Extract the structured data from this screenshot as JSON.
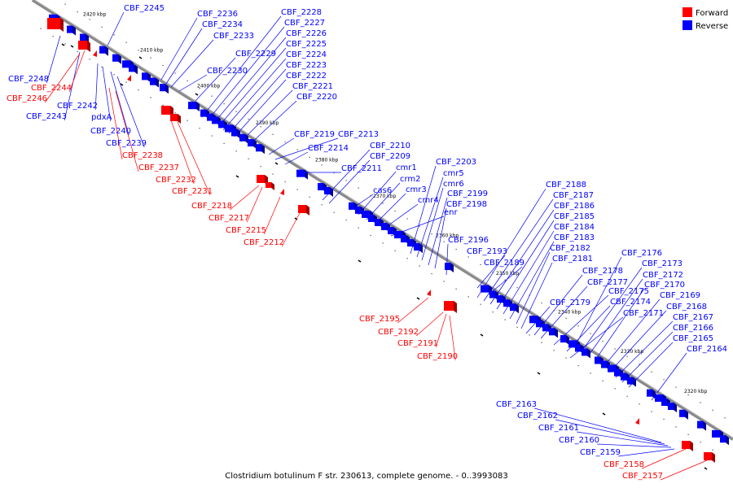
{
  "caption": "Clostridium botulinum F str. 230613, complete genome. - 0..3993083",
  "legend": {
    "forward_label": "Forward",
    "reverse_label": "Reverse",
    "forward_color": "#ff0000",
    "reverse_color": "#0000ff"
  },
  "colors": {
    "backbone": "#8a8a8a",
    "forward": "#ff0000",
    "reverse": "#0000ff",
    "tick": "#000000"
  },
  "kbp_ticks": [
    "2420 kbp",
    "2410 kbp",
    "2400 kbp",
    "2390 kbp",
    "2380 kbp",
    "2370 kbp",
    "2360 kbp",
    "2350 kbp",
    "2340 kbp",
    "2330 kbp",
    "2320 kbp"
  ],
  "reverse_labels": [
    "CBF_2245",
    "CBF_2236",
    "CBF_2234",
    "CBF_2233",
    "CBF_2228",
    "CBF_2227",
    "CBF_2226",
    "CBF_2225",
    "CBF_2224",
    "CBF_2229",
    "CBF_2223",
    "CBF_2230",
    "CBF_2222",
    "CBF_2221",
    "CBF_2220",
    "CBF_2248",
    "CBF_2242",
    "CBF_2243",
    "pdxA",
    "CBF_2240",
    "CBF_2239",
    "CBF_2219",
    "CBF_2213",
    "CBF_2214",
    "CBF_2210",
    "CBF_2209",
    "CBF_2211",
    "CBF_2203",
    "cmr1",
    "cmr5",
    "crm2",
    "cmr6",
    "cas6",
    "cmr3",
    "CBF_2199",
    "cmr4",
    "CBF_2198",
    "enr",
    "CBF_2196",
    "CBF_2193",
    "CBF_2189",
    "CBF_2188",
    "CBF_2187",
    "CBF_2186",
    "CBF_2185",
    "CBF_2184",
    "CBF_2183",
    "CBF_2182",
    "CBF_2181",
    "CBF_2176",
    "CBF_2173",
    "CBF_2178",
    "CBF_2172",
    "CBF_2177",
    "CBF_2175",
    "CBF_2170",
    "CBF_2179",
    "CBF_2174",
    "CBF_2169",
    "CBF_2168",
    "CBF_2171",
    "CBF_2167",
    "CBF_2166",
    "CBF_2165",
    "CBF_2164",
    "CBF_2163",
    "CBF_2162",
    "CBF_2161",
    "CBF_2160",
    "CBF_2159"
  ],
  "forward_labels": [
    "CBF_2244",
    "CBF_2246",
    "CBF_2238",
    "CBF_2237",
    "CBF_2232",
    "CBF_2231",
    "CBF_2218",
    "CBF_2217",
    "CBF_2215",
    "CBF_2212",
    "CBF_2195",
    "CBF_2192",
    "CBF_2191",
    "CBF_2190",
    "CBF_2158",
    "CBF_2157"
  ]
}
